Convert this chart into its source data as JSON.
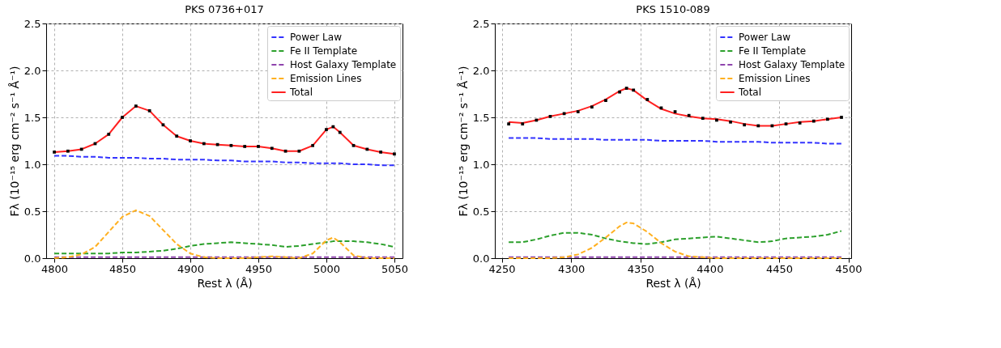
{
  "chart_data": [
    {
      "type": "line",
      "title": "PKS 0736+017",
      "xlabel": "Rest λ (Å)",
      "ylabel": "Fλ (10⁻¹⁵ erg cm⁻² s⁻¹ Å⁻¹)",
      "x": [
        4800,
        4810,
        4820,
        4830,
        4840,
        4850,
        4860,
        4870,
        4880,
        4890,
        4900,
        4910,
        4920,
        4930,
        4940,
        4950,
        4960,
        4970,
        4980,
        4990,
        5000,
        5005,
        5010,
        5020,
        5030,
        5040,
        5050
      ],
      "xlim": [
        4794,
        5056
      ],
      "xticks": [
        4800,
        4850,
        4900,
        4950,
        5000,
        5050
      ],
      "ylim": [
        0,
        2.5
      ],
      "yticks": [
        {
          "value": 0,
          "label": "0.0"
        },
        {
          "value": 0.5,
          "label": "0.5"
        },
        {
          "value": 1,
          "label": "1.0"
        },
        {
          "value": 1.5,
          "label": "1.5"
        },
        {
          "value": 2,
          "label": "2.0"
        },
        {
          "value": 2.5,
          "label": "2.5"
        }
      ],
      "grid": true,
      "legend": "top right",
      "series": [
        {
          "type": "scatter",
          "marker": "square",
          "color": "#000000",
          "values": [
            1.13,
            1.14,
            1.16,
            1.22,
            1.32,
            1.5,
            1.62,
            1.57,
            1.42,
            1.3,
            1.25,
            1.22,
            1.21,
            1.2,
            1.19,
            1.19,
            1.17,
            1.14,
            1.14,
            1.2,
            1.37,
            1.4,
            1.34,
            1.2,
            1.16,
            1.13,
            1.11
          ]
        },
        {
          "name": "Power Law",
          "line_style": "dashed",
          "color": "#3333ff",
          "values": [
            1.09,
            1.09,
            1.08,
            1.08,
            1.07,
            1.07,
            1.07,
            1.06,
            1.06,
            1.05,
            1.05,
            1.05,
            1.04,
            1.04,
            1.03,
            1.03,
            1.03,
            1.02,
            1.02,
            1.01,
            1.01,
            1.01,
            1.01,
            1.0,
            1.0,
            0.99,
            0.99
          ]
        },
        {
          "name": "Fe II Template",
          "line_style": "dashed",
          "color": "#2ca02c",
          "values": [
            0.05,
            0.05,
            0.05,
            0.05,
            0.05,
            0.06,
            0.06,
            0.07,
            0.08,
            0.1,
            0.13,
            0.15,
            0.16,
            0.17,
            0.16,
            0.15,
            0.14,
            0.12,
            0.13,
            0.15,
            0.17,
            0.18,
            0.18,
            0.18,
            0.17,
            0.15,
            0.12
          ]
        },
        {
          "name": "Host Galaxy Template",
          "line_style": "dashed",
          "color": "#8e44ad",
          "values": [
            0.01,
            0.01,
            0.01,
            0.01,
            0.01,
            0.01,
            0.01,
            0.01,
            0.01,
            0.01,
            0.01,
            0.01,
            0.01,
            0.01,
            0.01,
            0.01,
            0.01,
            0.01,
            0.01,
            0.01,
            0.01,
            0.01,
            0.01,
            0.01,
            0.01,
            0.01,
            0.01
          ]
        },
        {
          "name": "Emission Lines",
          "line_style": "dashed",
          "color": "#ffb020",
          "values": [
            0.0,
            0.01,
            0.04,
            0.12,
            0.28,
            0.44,
            0.51,
            0.45,
            0.3,
            0.15,
            0.05,
            0.01,
            0.0,
            0.0,
            0.0,
            0.01,
            0.02,
            0.01,
            0.0,
            0.05,
            0.19,
            0.22,
            0.17,
            0.03,
            0.0,
            0.0,
            0.0
          ]
        },
        {
          "name": "Total",
          "line_style": "solid",
          "color": "#ff2020",
          "values": [
            1.13,
            1.14,
            1.16,
            1.22,
            1.32,
            1.5,
            1.62,
            1.57,
            1.42,
            1.3,
            1.25,
            1.22,
            1.21,
            1.2,
            1.19,
            1.19,
            1.17,
            1.14,
            1.14,
            1.2,
            1.37,
            1.4,
            1.34,
            1.2,
            1.16,
            1.13,
            1.11
          ]
        }
      ]
    },
    {
      "type": "line",
      "title": "PKS 1510-089",
      "xlabel": "Rest λ (Å)",
      "ylabel": "Fλ (10⁻¹⁵ erg cm⁻² s⁻¹ Å⁻¹)",
      "x": [
        4255,
        4265,
        4275,
        4285,
        4295,
        4305,
        4315,
        4325,
        4335,
        4340,
        4345,
        4355,
        4365,
        4375,
        4385,
        4395,
        4405,
        4415,
        4425,
        4435,
        4445,
        4455,
        4465,
        4475,
        4485,
        4495
      ],
      "xlim": [
        4245,
        4502
      ],
      "xticks": [
        4250,
        4300,
        4350,
        4400,
        4450,
        4500
      ],
      "ylim": [
        0,
        2.5
      ],
      "yticks": [
        {
          "value": 0,
          "label": "0.0"
        },
        {
          "value": 0.5,
          "label": "0.5"
        },
        {
          "value": 1,
          "label": "1.0"
        },
        {
          "value": 1.5,
          "label": "1.5"
        },
        {
          "value": 2,
          "label": "2.0"
        },
        {
          "value": 2.5,
          "label": "2.5"
        }
      ],
      "grid": true,
      "legend": "top right",
      "series": [
        {
          "type": "scatter",
          "marker": "square",
          "color": "#000000",
          "values": [
            1.43,
            1.43,
            1.47,
            1.51,
            1.54,
            1.56,
            1.61,
            1.68,
            1.77,
            1.81,
            1.79,
            1.69,
            1.6,
            1.56,
            1.52,
            1.49,
            1.47,
            1.45,
            1.42,
            1.41,
            1.41,
            1.43,
            1.44,
            1.46,
            1.48,
            1.5
          ]
        },
        {
          "name": "Power Law",
          "line_style": "dashed",
          "color": "#3333ff",
          "values": [
            1.28,
            1.28,
            1.28,
            1.27,
            1.27,
            1.27,
            1.27,
            1.26,
            1.26,
            1.26,
            1.26,
            1.26,
            1.25,
            1.25,
            1.25,
            1.25,
            1.24,
            1.24,
            1.24,
            1.24,
            1.23,
            1.23,
            1.23,
            1.23,
            1.22,
            1.22
          ]
        },
        {
          "name": "Fe II Template",
          "line_style": "dashed",
          "color": "#2ca02c",
          "values": [
            0.17,
            0.17,
            0.2,
            0.24,
            0.27,
            0.27,
            0.25,
            0.21,
            0.18,
            0.17,
            0.16,
            0.15,
            0.17,
            0.2,
            0.21,
            0.22,
            0.23,
            0.21,
            0.19,
            0.17,
            0.18,
            0.21,
            0.22,
            0.23,
            0.25,
            0.29
          ]
        },
        {
          "name": "Host Galaxy Template",
          "line_style": "dashed",
          "color": "#8e44ad",
          "values": [
            0.01,
            0.01,
            0.01,
            0.01,
            0.01,
            0.01,
            0.01,
            0.01,
            0.01,
            0.01,
            0.01,
            0.01,
            0.01,
            0.01,
            0.01,
            0.01,
            0.01,
            0.01,
            0.01,
            0.01,
            0.01,
            0.01,
            0.01,
            0.01,
            0.01,
            0.01
          ]
        },
        {
          "name": "Emission Lines",
          "line_style": "dashed",
          "color": "#ffb020",
          "values": [
            0.0,
            0.0,
            0.0,
            0.0,
            0.01,
            0.04,
            0.11,
            0.22,
            0.34,
            0.38,
            0.37,
            0.28,
            0.16,
            0.07,
            0.02,
            0.01,
            0.0,
            0.0,
            0.0,
            0.0,
            0.0,
            0.0,
            0.0,
            0.0,
            0.0,
            0.0
          ]
        },
        {
          "name": "Total",
          "line_style": "solid",
          "color": "#ff2020",
          "values": [
            1.45,
            1.44,
            1.47,
            1.51,
            1.54,
            1.57,
            1.62,
            1.69,
            1.78,
            1.81,
            1.79,
            1.68,
            1.59,
            1.54,
            1.51,
            1.49,
            1.48,
            1.46,
            1.43,
            1.41,
            1.41,
            1.43,
            1.45,
            1.46,
            1.48,
            1.5
          ]
        }
      ]
    }
  ]
}
